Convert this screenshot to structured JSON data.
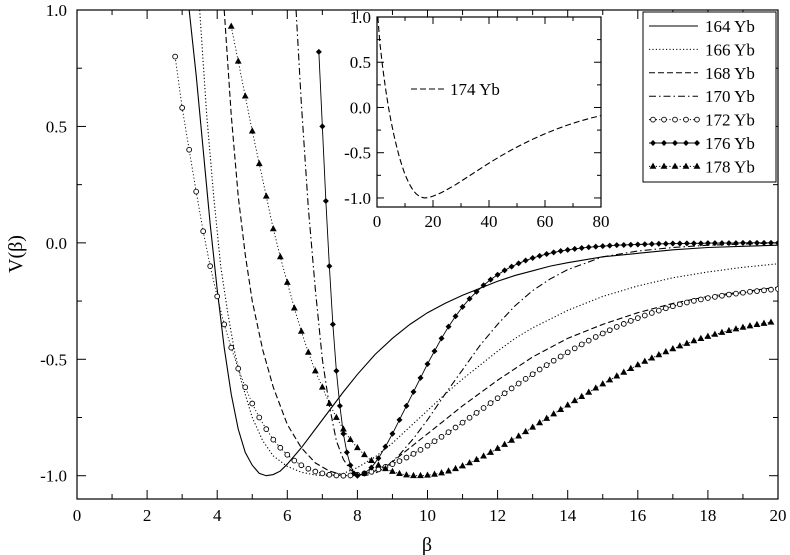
{
  "chart_data": [
    {
      "type": "line",
      "role": "main",
      "title": "",
      "xlabel": "β",
      "ylabel": "V(β)",
      "xlim": [
        0,
        20
      ],
      "ylim": [
        -1.1,
        1.0
      ],
      "xticks": [
        "0",
        "2",
        "4",
        "6",
        "8",
        "10",
        "12",
        "14",
        "16",
        "18",
        "20"
      ],
      "yticks": [
        "-1.0",
        "-0.5",
        "0.0",
        "0.5",
        "1.0"
      ],
      "grid": false,
      "legend_placement": "top-right",
      "series": [
        {
          "name": "164 Yb",
          "style": "solid",
          "marker": "none",
          "x": [
            3.2,
            3.4,
            3.6,
            3.8,
            4.0,
            4.2,
            4.4,
            4.6,
            4.8,
            5.0,
            5.2,
            5.4,
            5.6,
            5.8,
            6.0,
            6.4,
            6.8,
            7.2,
            7.6,
            8.0,
            8.5,
            9.0,
            9.5,
            10.0,
            10.5,
            11.0,
            11.5,
            12.0,
            12.5,
            13.0,
            13.5,
            14.0,
            15.0,
            16.0,
            17.0,
            18.0,
            19.0,
            20.0
          ],
          "y": [
            1.0,
            0.72,
            0.4,
            0.08,
            -0.2,
            -0.45,
            -0.65,
            -0.8,
            -0.9,
            -0.955,
            -0.99,
            -1.0,
            -0.995,
            -0.98,
            -0.95,
            -0.88,
            -0.8,
            -0.72,
            -0.64,
            -0.565,
            -0.48,
            -0.41,
            -0.35,
            -0.3,
            -0.26,
            -0.225,
            -0.195,
            -0.165,
            -0.14,
            -0.12,
            -0.1,
            -0.085,
            -0.06,
            -0.045,
            -0.03,
            -0.02,
            -0.015,
            -0.01
          ]
        },
        {
          "name": "166 Yb",
          "style": "dotted",
          "marker": "none",
          "x": [
            3.5,
            3.7,
            3.9,
            4.1,
            4.3,
            4.5,
            4.7,
            5.0,
            5.3,
            5.6,
            6.0,
            6.4,
            6.8,
            7.2,
            7.6,
            8.0,
            8.5,
            9.0,
            9.5,
            10.0,
            10.5,
            11.0,
            11.5,
            12.0,
            12.5,
            13.0,
            14.0,
            15.0,
            16.0,
            17.0,
            18.0,
            19.0,
            20.0
          ],
          "y": [
            1.0,
            0.55,
            0.2,
            -0.1,
            -0.3,
            -0.47,
            -0.6,
            -0.75,
            -0.85,
            -0.915,
            -0.96,
            -0.985,
            -0.997,
            -1.0,
            -0.99,
            -0.965,
            -0.92,
            -0.86,
            -0.79,
            -0.72,
            -0.65,
            -0.585,
            -0.525,
            -0.465,
            -0.41,
            -0.365,
            -0.29,
            -0.23,
            -0.185,
            -0.15,
            -0.125,
            -0.105,
            -0.09
          ]
        },
        {
          "name": "168 Yb",
          "style": "dashed",
          "marker": "none",
          "x": [
            4.2,
            4.4,
            4.6,
            4.8,
            5.0,
            5.3,
            5.6,
            6.0,
            6.4,
            6.8,
            7.2,
            7.6,
            8.0,
            8.5,
            9.0,
            9.5,
            10.0,
            10.5,
            11.0,
            12.0,
            13.0,
            14.0,
            15.0,
            16.0,
            17.0,
            18.0,
            19.0,
            20.0
          ],
          "y": [
            1.0,
            0.55,
            0.2,
            -0.05,
            -0.25,
            -0.46,
            -0.62,
            -0.78,
            -0.88,
            -0.945,
            -0.98,
            -0.997,
            -1.0,
            -0.98,
            -0.94,
            -0.88,
            -0.82,
            -0.76,
            -0.7,
            -0.59,
            -0.49,
            -0.41,
            -0.35,
            -0.3,
            -0.26,
            -0.23,
            -0.21,
            -0.19
          ]
        },
        {
          "name": "170 Yb",
          "style": "dashdot",
          "marker": "none",
          "x": [
            6.25,
            6.4,
            6.6,
            6.8,
            7.0,
            7.2,
            7.4,
            7.6,
            7.8,
            8.0,
            8.2,
            8.5,
            8.8,
            9.2,
            9.6,
            10.0,
            10.5,
            11.0,
            11.5,
            12.0,
            12.5,
            13.0,
            13.5,
            14.0,
            15.0,
            16.0,
            17.0,
            18.0,
            19.0,
            20.0
          ],
          "y": [
            1.0,
            0.6,
            0.15,
            -0.2,
            -0.5,
            -0.7,
            -0.85,
            -0.93,
            -0.975,
            -0.995,
            -1.0,
            -0.99,
            -0.965,
            -0.91,
            -0.84,
            -0.76,
            -0.65,
            -0.545,
            -0.44,
            -0.35,
            -0.27,
            -0.205,
            -0.155,
            -0.115,
            -0.06,
            -0.035,
            -0.02,
            -0.01,
            -0.005,
            0.0
          ]
        },
        {
          "name": "172 Yb",
          "style": "dotted",
          "marker": "circle",
          "x": [
            2.8,
            3.0,
            3.2,
            3.4,
            3.6,
            3.8,
            4.0,
            4.2,
            4.4,
            4.6,
            4.8,
            5.0,
            5.2,
            5.4,
            5.6,
            5.8,
            6.0,
            6.2,
            6.4,
            6.6,
            6.8,
            7.0,
            7.2,
            7.4,
            7.6,
            7.8,
            8.0,
            8.2,
            8.4,
            8.6,
            8.8,
            9.0,
            9.2,
            9.4,
            9.6,
            9.8,
            10.0,
            10.2,
            10.4,
            10.6,
            10.8,
            11.0,
            11.2,
            11.4,
            11.6,
            11.8,
            12.0,
            12.2,
            12.4,
            12.6,
            12.8,
            13.0,
            13.2,
            13.4,
            13.6,
            13.8,
            14.0,
            14.2,
            14.4,
            14.6,
            14.8,
            15.0,
            15.2,
            15.4,
            15.6,
            15.8,
            16.0,
            16.2,
            16.4,
            16.6,
            16.8,
            17.0,
            17.2,
            17.4,
            17.6,
            17.8,
            18.0,
            18.2,
            18.4,
            18.6,
            18.8,
            19.0,
            19.2,
            19.4,
            19.6,
            19.8,
            20.0
          ],
          "y": [
            0.8,
            0.58,
            0.4,
            0.22,
            0.05,
            -0.1,
            -0.23,
            -0.35,
            -0.45,
            -0.54,
            -0.62,
            -0.69,
            -0.75,
            -0.8,
            -0.845,
            -0.88,
            -0.91,
            -0.935,
            -0.955,
            -0.97,
            -0.982,
            -0.99,
            -0.996,
            -0.999,
            -1.0,
            -0.999,
            -0.996,
            -0.99,
            -0.983,
            -0.973,
            -0.962,
            -0.95,
            -0.937,
            -0.922,
            -0.906,
            -0.889,
            -0.871,
            -0.852,
            -0.833,
            -0.813,
            -0.793,
            -0.772,
            -0.751,
            -0.73,
            -0.709,
            -0.688,
            -0.667,
            -0.646,
            -0.625,
            -0.604,
            -0.584,
            -0.564,
            -0.544,
            -0.525,
            -0.506,
            -0.488,
            -0.47,
            -0.453,
            -0.436,
            -0.42,
            -0.404,
            -0.389,
            -0.375,
            -0.361,
            -0.348,
            -0.335,
            -0.323,
            -0.312,
            -0.301,
            -0.291,
            -0.281,
            -0.272,
            -0.264,
            -0.256,
            -0.249,
            -0.243,
            -0.237,
            -0.232,
            -0.227,
            -0.222,
            -0.218,
            -0.214,
            -0.21,
            -0.207,
            -0.204,
            -0.201,
            -0.198
          ]
        },
        {
          "name": "176 Yb",
          "style": "solid",
          "marker": "diamond",
          "x": [
            6.9,
            7.0,
            7.1,
            7.2,
            7.3,
            7.4,
            7.5,
            7.6,
            7.7,
            7.8,
            7.9,
            8.0,
            8.2,
            8.4,
            8.6,
            8.8,
            9.0,
            9.2,
            9.4,
            9.6,
            9.8,
            10.0,
            10.2,
            10.4,
            10.6,
            10.8,
            11.0,
            11.2,
            11.4,
            11.6,
            11.8,
            12.0,
            12.2,
            12.4,
            12.6,
            12.8,
            13.0,
            13.2,
            13.4,
            13.6,
            13.8,
            14.0,
            14.2,
            14.4,
            14.6,
            14.8,
            15.0,
            15.2,
            15.4,
            15.6,
            15.8,
            16.0,
            16.2,
            16.4,
            16.6,
            16.8,
            17.0,
            17.2,
            17.4,
            17.6,
            17.8,
            18.0,
            18.2,
            18.4,
            18.6,
            18.8,
            19.0,
            19.2,
            19.4,
            19.6,
            19.8,
            20.0
          ],
          "y": [
            0.82,
            0.5,
            0.18,
            -0.1,
            -0.35,
            -0.55,
            -0.7,
            -0.82,
            -0.9,
            -0.955,
            -0.99,
            -1.0,
            -0.99,
            -0.965,
            -0.925,
            -0.875,
            -0.82,
            -0.76,
            -0.7,
            -0.64,
            -0.58,
            -0.52,
            -0.465,
            -0.41,
            -0.36,
            -0.315,
            -0.275,
            -0.24,
            -0.21,
            -0.182,
            -0.158,
            -0.137,
            -0.118,
            -0.102,
            -0.088,
            -0.076,
            -0.065,
            -0.056,
            -0.048,
            -0.041,
            -0.035,
            -0.03,
            -0.026,
            -0.022,
            -0.019,
            -0.016,
            -0.014,
            -0.012,
            -0.01,
            -0.009,
            -0.008,
            -0.007,
            -0.006,
            -0.005,
            -0.004,
            -0.004,
            -0.003,
            -0.003,
            -0.002,
            -0.002,
            -0.002,
            -0.001,
            -0.001,
            -0.001,
            -0.001,
            -0.001,
            0.0,
            0.0,
            0.0,
            0.0,
            0.0,
            0.0
          ]
        },
        {
          "name": "178 Yb",
          "style": "dotted",
          "marker": "triangle",
          "x": [
            4.4,
            4.6,
            4.8,
            5.0,
            5.2,
            5.4,
            5.6,
            5.8,
            6.0,
            6.2,
            6.4,
            6.6,
            6.8,
            7.0,
            7.2,
            7.4,
            7.6,
            7.8,
            8.0,
            8.2,
            8.4,
            8.6,
            8.8,
            9.0,
            9.2,
            9.4,
            9.6,
            9.8,
            10.0,
            10.2,
            10.4,
            10.6,
            10.8,
            11.0,
            11.2,
            11.4,
            11.6,
            11.8,
            12.0,
            12.2,
            12.4,
            12.6,
            12.8,
            13.0,
            13.2,
            13.4,
            13.6,
            13.8,
            14.0,
            14.2,
            14.4,
            14.6,
            14.8,
            15.0,
            15.2,
            15.4,
            15.6,
            15.8,
            16.0,
            16.2,
            16.4,
            16.6,
            16.8,
            17.0,
            17.2,
            17.4,
            17.6,
            17.8,
            18.0,
            18.2,
            18.4,
            18.6,
            18.8,
            19.0,
            19.2,
            19.4,
            19.6,
            19.8
          ],
          "y": [
            0.93,
            0.78,
            0.63,
            0.48,
            0.34,
            0.2,
            0.06,
            -0.06,
            -0.17,
            -0.28,
            -0.38,
            -0.47,
            -0.55,
            -0.62,
            -0.69,
            -0.75,
            -0.8,
            -0.845,
            -0.88,
            -0.91,
            -0.935,
            -0.955,
            -0.97,
            -0.982,
            -0.991,
            -0.997,
            -1.0,
            -1.0,
            -0.998,
            -0.994,
            -0.988,
            -0.98,
            -0.97,
            -0.958,
            -0.945,
            -0.931,
            -0.916,
            -0.9,
            -0.883,
            -0.866,
            -0.848,
            -0.83,
            -0.811,
            -0.792,
            -0.773,
            -0.754,
            -0.735,
            -0.716,
            -0.697,
            -0.678,
            -0.66,
            -0.642,
            -0.624,
            -0.606,
            -0.589,
            -0.572,
            -0.556,
            -0.54,
            -0.524,
            -0.509,
            -0.495,
            -0.481,
            -0.468,
            -0.455,
            -0.443,
            -0.432,
            -0.421,
            -0.411,
            -0.402,
            -0.393,
            -0.385,
            -0.377,
            -0.37,
            -0.363,
            -0.357,
            -0.351,
            -0.346,
            -0.341
          ]
        }
      ]
    },
    {
      "type": "line",
      "role": "inset",
      "title": "",
      "xlabel": "",
      "ylabel": "",
      "xlim": [
        0,
        80
      ],
      "ylim": [
        -1.1,
        1.0
      ],
      "xticks": [
        "0",
        "20",
        "40",
        "60",
        "80"
      ],
      "yticks": [
        "-1.0",
        "-0.5",
        "0.0",
        "0.5",
        "1.0"
      ],
      "grid": false,
      "legend_placement": "upper-left",
      "series": [
        {
          "name": "174 Yb",
          "style": "dashed",
          "marker": "none",
          "x": [
            0.3,
            1,
            2,
            3,
            4,
            5,
            6,
            7,
            8,
            9,
            10,
            11,
            12,
            13,
            14,
            15,
            16,
            17,
            18,
            19,
            20,
            22,
            24,
            26,
            28,
            30,
            33,
            36,
            40,
            44,
            48,
            52,
            56,
            60,
            64,
            68,
            72,
            76,
            80
          ],
          "y": [
            1.0,
            0.72,
            0.45,
            0.22,
            0.02,
            -0.15,
            -0.3,
            -0.43,
            -0.55,
            -0.65,
            -0.74,
            -0.81,
            -0.87,
            -0.92,
            -0.955,
            -0.978,
            -0.993,
            -1.0,
            -0.997,
            -0.99,
            -0.98,
            -0.955,
            -0.925,
            -0.89,
            -0.855,
            -0.815,
            -0.755,
            -0.695,
            -0.615,
            -0.54,
            -0.47,
            -0.405,
            -0.345,
            -0.29,
            -0.24,
            -0.195,
            -0.155,
            -0.12,
            -0.09
          ]
        }
      ]
    }
  ]
}
